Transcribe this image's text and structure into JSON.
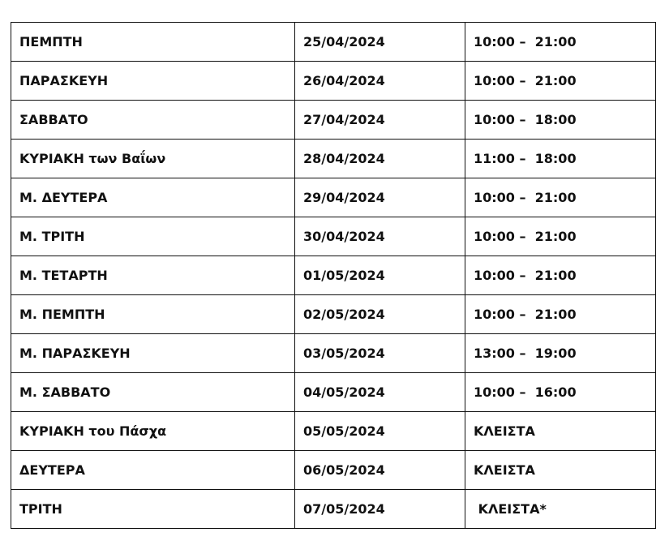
{
  "schedule": [
    {
      "day": "ΠΕΜΠΤΗ",
      "date": "25/04/2024",
      "hours": "10:00 –  21:00"
    },
    {
      "day": "ΠΑΡΑΣΚΕΥΗ",
      "date": "26/04/2024",
      "hours": "10:00 –  21:00"
    },
    {
      "day": "ΣΑΒΒΑΤΟ",
      "date": "27/04/2024",
      "hours": "10:00 –  18:00"
    },
    {
      "day": "ΚΥΡΙΑΚΗ των Βαΐων",
      "date": "28/04/2024",
      "hours": "11:00 –  18:00"
    },
    {
      "day": "Μ. ΔΕΥΤΕΡΑ",
      "date": "29/04/2024",
      "hours": "10:00 –  21:00"
    },
    {
      "day": "Μ. ΤΡΙΤΗ",
      "date": "30/04/2024",
      "hours": "10:00 –  21:00"
    },
    {
      "day": "Μ. ΤΕΤΑΡΤΗ",
      "date": "01/05/2024",
      "hours": "10:00 –  21:00"
    },
    {
      "day": "Μ. ΠΕΜΠΤΗ",
      "date": "02/05/2024",
      "hours": "10:00 –  21:00"
    },
    {
      "day": "Μ. ΠΑΡΑΣΚΕΥΗ",
      "date": "03/05/2024",
      "hours": "13:00 –  19:00"
    },
    {
      "day": "Μ. ΣΑΒΒΑΤΟ",
      "date": "04/05/2024",
      "hours": "10:00 –  16:00"
    },
    {
      "day": "ΚΥΡΙΑΚΗ του Πάσχα",
      "date": "05/05/2024",
      "hours": "ΚΛΕΙΣΤΑ"
    },
    {
      "day": "ΔΕΥΤΕΡΑ",
      "date": "06/05/2024",
      "hours": "ΚΛΕΙΣΤΑ"
    },
    {
      "day": "ΤΡΙΤΗ",
      "date": "07/05/2024",
      "hours": " ΚΛΕΙΣΤΑ*"
    }
  ]
}
